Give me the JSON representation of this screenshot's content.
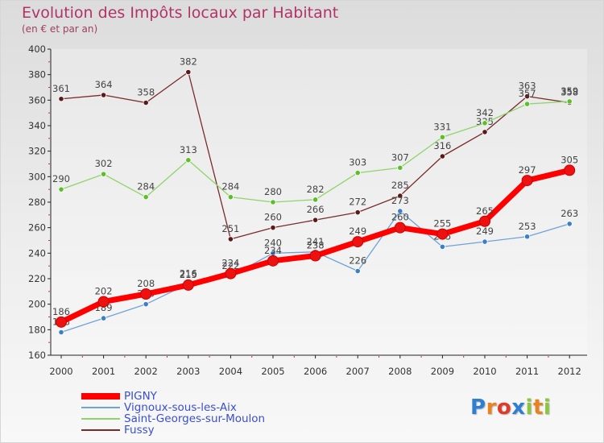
{
  "chart_data": {
    "type": "line",
    "title": "Evolution des Impôts locaux par Habitant",
    "subtitle": "(en € et par an)",
    "x": [
      "2000",
      "2001",
      "2002",
      "2003",
      "2004",
      "2005",
      "2006",
      "2007",
      "2008",
      "2009",
      "2010",
      "2011",
      "2012"
    ],
    "ylim": [
      160,
      400
    ],
    "yticks": [
      160,
      180,
      200,
      220,
      240,
      260,
      280,
      300,
      320,
      340,
      360,
      380,
      400
    ],
    "grid": false,
    "legend_position": "bottom-left",
    "series": [
      {
        "name": "PIGNY",
        "color": "#ff0000",
        "marker": "#ee1111",
        "width": 7,
        "r": 6.5,
        "values": [
          186,
          202,
          208,
          215,
          224,
          234,
          238,
          249,
          260,
          255,
          265,
          297,
          305
        ]
      },
      {
        "name": "Vignoux-sous-les-Aix",
        "color": "#6fa3d8",
        "marker": "#3d7fc6",
        "width": 1.3,
        "r": 3.2,
        "values": [
          178,
          189,
          200,
          216,
          222,
          240,
          241,
          226,
          273,
          245,
          249,
          253,
          263
        ]
      },
      {
        "name": "Saint-Georges-sur-Moulon",
        "color": "#8fd46a",
        "marker": "#5cbf2a",
        "width": 1.3,
        "r": 3.2,
        "values": [
          290,
          302,
          284,
          313,
          284,
          280,
          282,
          303,
          307,
          331,
          342,
          357,
          359
        ]
      },
      {
        "name": "Fussy",
        "color": "#7a2a2a",
        "marker": "#5a1a1a",
        "width": 1.3,
        "r": 3.2,
        "values": [
          361,
          364,
          358,
          382,
          251,
          260,
          266,
          272,
          285,
          316,
          335,
          363,
          358
        ]
      }
    ]
  },
  "logo": {
    "text": "Proxiti",
    "letters": [
      {
        "ch": "P",
        "color": "#2f7fd0"
      },
      {
        "ch": "r",
        "color": "#e8831f"
      },
      {
        "ch": "o",
        "color": "#e03a2a"
      },
      {
        "ch": "x",
        "color": "#2f7fd0"
      },
      {
        "ch": "i",
        "color": "#8cc63f"
      },
      {
        "ch": "t",
        "color": "#e8831f"
      },
      {
        "ch": "i",
        "color": "#8cc63f"
      }
    ]
  }
}
